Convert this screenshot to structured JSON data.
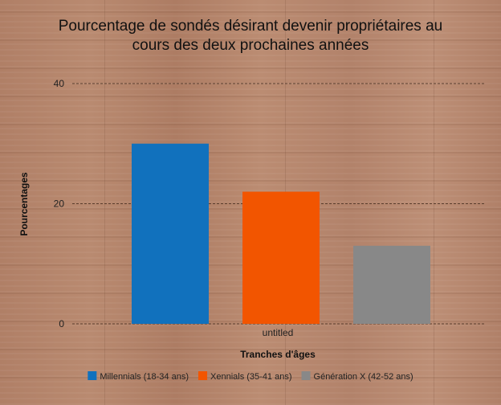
{
  "chart_data": {
    "type": "bar",
    "title_line1": "Pourcentage de sondés désirant devenir propriétaires au",
    "title_line2": "cours des deux prochaines années",
    "xlabel": "Tranches d'âges",
    "ylabel": "Pourcentages",
    "categories": [
      "untitled"
    ],
    "ylim": [
      0,
      40
    ],
    "yticks": [
      0,
      20,
      40
    ],
    "grid": true,
    "legend_position": "bottom",
    "series": [
      {
        "name": "Millennials (18-34 ans)",
        "color": "#1171bd",
        "values": [
          30
        ]
      },
      {
        "name": "Xennials (35-41 ans)",
        "color": "#f25500",
        "values": [
          22
        ]
      },
      {
        "name": "Génération X (42-52 ans)",
        "color": "#888888",
        "values": [
          13
        ]
      }
    ]
  }
}
